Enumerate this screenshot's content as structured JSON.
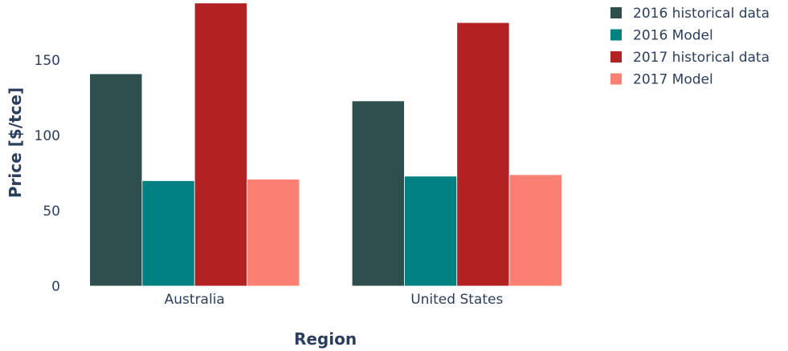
{
  "chart_data": {
    "type": "bar",
    "categories": [
      "Australia",
      "United States"
    ],
    "series": [
      {
        "name": "2016 historical data",
        "values": [
          141,
          123
        ],
        "color": "#2f4f4f"
      },
      {
        "name": "2016 Model",
        "values": [
          70,
          73
        ],
        "color": "#008080"
      },
      {
        "name": "2017 historical data",
        "values": [
          188,
          175
        ],
        "color": "#b22222"
      },
      {
        "name": "2017 Model",
        "values": [
          71,
          74
        ],
        "color": "#fa8072"
      }
    ],
    "xlabel": "Region",
    "ylabel": "Price [$/tce]",
    "ylim": [
      0,
      190
    ],
    "yticks": [
      0,
      50,
      100,
      150
    ],
    "grid": false,
    "legend_position": "top-right"
  }
}
